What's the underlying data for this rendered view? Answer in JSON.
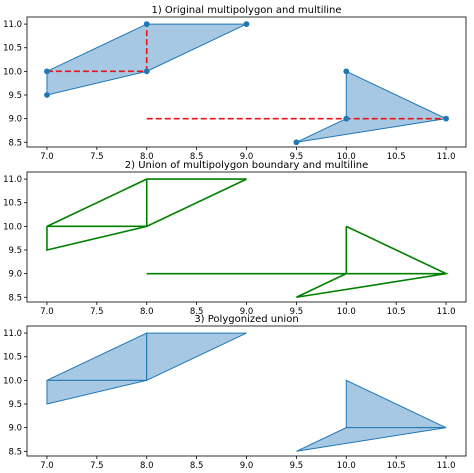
{
  "chart_data": [
    {
      "type": "line",
      "title": "1) Original multipolygon and multiline",
      "xlim": [
        6.8,
        11.2
      ],
      "ylim": [
        8.4,
        11.15
      ],
      "xticks": [
        7.0,
        7.5,
        8.0,
        8.5,
        9.0,
        9.5,
        10.0,
        10.5,
        11.0
      ],
      "xtick_labels": [
        "7.0",
        "7.5",
        "8.0",
        "8.5",
        "9.0",
        "9.5",
        "10.0",
        "10.5",
        "11.0"
      ],
      "yticks": [
        8.5,
        9.0,
        9.5,
        10.0,
        10.5,
        11.0
      ],
      "ytick_labels": [
        "8.5",
        "9.0",
        "9.5",
        "10.0",
        "10.5",
        "11.0"
      ],
      "grid": false,
      "series": [
        {
          "kind": "polygon",
          "fill": "#a6c8e3",
          "stroke": "#1f77b4",
          "markers": true,
          "points": [
            [
              7.0,
              10.0
            ],
            [
              8.0,
              11.0
            ],
            [
              9.0,
              11.0
            ],
            [
              8.0,
              10.0
            ],
            [
              7.0,
              9.5
            ]
          ]
        },
        {
          "kind": "polygon",
          "fill": "#a6c8e3",
          "stroke": "#1f77b4",
          "markers": true,
          "points": [
            [
              10.0,
              10.0
            ],
            [
              11.0,
              9.0
            ],
            [
              9.5,
              8.5
            ],
            [
              10.0,
              9.0
            ]
          ]
        },
        {
          "kind": "line",
          "stroke": "#e8141a",
          "dashed": true,
          "points": [
            [
              7.0,
              10.0
            ],
            [
              8.0,
              10.0
            ],
            [
              8.0,
              11.0
            ]
          ]
        },
        {
          "kind": "line",
          "stroke": "#e8141a",
          "dashed": true,
          "points": [
            [
              8.0,
              9.0
            ],
            [
              11.0,
              9.0
            ]
          ]
        }
      ]
    },
    {
      "type": "line",
      "title": "2) Union of multipolygon boundary and multiline",
      "xlim": [
        6.8,
        11.2
      ],
      "ylim": [
        8.4,
        11.15
      ],
      "xticks": [
        7.0,
        7.5,
        8.0,
        8.5,
        9.0,
        9.5,
        10.0,
        10.5,
        11.0
      ],
      "xtick_labels": [
        "7.0",
        "7.5",
        "8.0",
        "8.5",
        "9.0",
        "9.5",
        "10.0",
        "10.5",
        "11.0"
      ],
      "yticks": [
        8.5,
        9.0,
        9.5,
        10.0,
        10.5,
        11.0
      ],
      "ytick_labels": [
        "8.5",
        "9.0",
        "9.5",
        "10.0",
        "10.5",
        "11.0"
      ],
      "grid": false,
      "series": [
        {
          "kind": "line",
          "stroke": "#008000",
          "points": [
            [
              7.0,
              10.0
            ],
            [
              8.0,
              11.0
            ],
            [
              9.0,
              11.0
            ],
            [
              8.0,
              10.0
            ],
            [
              7.0,
              9.5
            ],
            [
              7.0,
              10.0
            ]
          ]
        },
        {
          "kind": "line",
          "stroke": "#008000",
          "points": [
            [
              7.0,
              10.0
            ],
            [
              8.0,
              10.0
            ]
          ]
        },
        {
          "kind": "line",
          "stroke": "#008000",
          "points": [
            [
              8.0,
              10.0
            ],
            [
              8.0,
              11.0
            ]
          ]
        },
        {
          "kind": "line",
          "stroke": "#008000",
          "points": [
            [
              10.0,
              10.0
            ],
            [
              11.0,
              9.0
            ],
            [
              9.5,
              8.5
            ],
            [
              10.0,
              9.0
            ],
            [
              10.0,
              10.0
            ]
          ]
        },
        {
          "kind": "line",
          "stroke": "#008000",
          "points": [
            [
              8.0,
              9.0
            ],
            [
              11.0,
              9.0
            ]
          ]
        }
      ]
    },
    {
      "type": "area",
      "title": "3) Polygonized union",
      "xlim": [
        6.8,
        11.2
      ],
      "ylim": [
        8.4,
        11.15
      ],
      "xticks": [
        7.0,
        7.5,
        8.0,
        8.5,
        9.0,
        9.5,
        10.0,
        10.5,
        11.0
      ],
      "xtick_labels": [
        "7.0",
        "7.5",
        "8.0",
        "8.5",
        "9.0",
        "9.5",
        "10.0",
        "10.5",
        "11.0"
      ],
      "yticks": [
        8.5,
        9.0,
        9.5,
        10.0,
        10.5,
        11.0
      ],
      "ytick_labels": [
        "8.5",
        "9.0",
        "9.5",
        "10.0",
        "10.5",
        "11.0"
      ],
      "grid": false,
      "series": [
        {
          "kind": "polygon",
          "fill": "#a6c8e3",
          "stroke": "#1f77b4",
          "points": [
            [
              7.0,
              10.0
            ],
            [
              8.0,
              11.0
            ],
            [
              8.0,
              10.0
            ]
          ]
        },
        {
          "kind": "polygon",
          "fill": "#a6c8e3",
          "stroke": "#1f77b4",
          "points": [
            [
              8.0,
              11.0
            ],
            [
              9.0,
              11.0
            ],
            [
              8.0,
              10.0
            ]
          ]
        },
        {
          "kind": "polygon",
          "fill": "#a6c8e3",
          "stroke": "#1f77b4",
          "points": [
            [
              7.0,
              10.0
            ],
            [
              8.0,
              10.0
            ],
            [
              7.0,
              9.5
            ]
          ]
        },
        {
          "kind": "polygon",
          "fill": "#a6c8e3",
          "stroke": "#1f77b4",
          "points": [
            [
              10.0,
              10.0
            ],
            [
              11.0,
              9.0
            ],
            [
              10.0,
              9.0
            ]
          ]
        },
        {
          "kind": "polygon",
          "fill": "#a6c8e3",
          "stroke": "#1f77b4",
          "points": [
            [
              10.0,
              9.0
            ],
            [
              11.0,
              9.0
            ],
            [
              9.5,
              8.5
            ]
          ]
        }
      ]
    }
  ]
}
